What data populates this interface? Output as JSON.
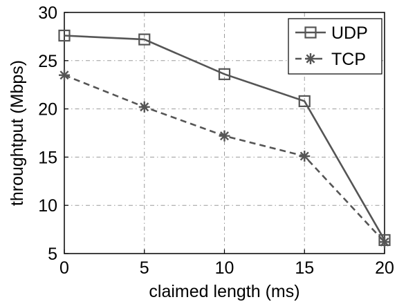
{
  "chart_data": {
    "type": "line",
    "title": "",
    "xlabel": "claimed length (ms)",
    "ylabel": "throughtput (Mbps)",
    "x": [
      0,
      5,
      10,
      15,
      20
    ],
    "xlim": [
      0,
      20
    ],
    "ylim": [
      5,
      30
    ],
    "xticks": [
      "0",
      "5",
      "10",
      "15",
      "20"
    ],
    "yticks": [
      "5",
      "10",
      "15",
      "20",
      "25",
      "30"
    ],
    "grid": true,
    "legend_position": "top-right",
    "series": [
      {
        "name": "UDP",
        "values": [
          27.6,
          27.2,
          23.6,
          20.8,
          6.4
        ],
        "marker": "square",
        "line_style": "solid",
        "color": "#555555"
      },
      {
        "name": "TCP",
        "values": [
          23.5,
          20.2,
          17.2,
          15.1,
          6.2
        ],
        "marker": "star",
        "line_style": "dashed",
        "color": "#555555"
      }
    ]
  }
}
